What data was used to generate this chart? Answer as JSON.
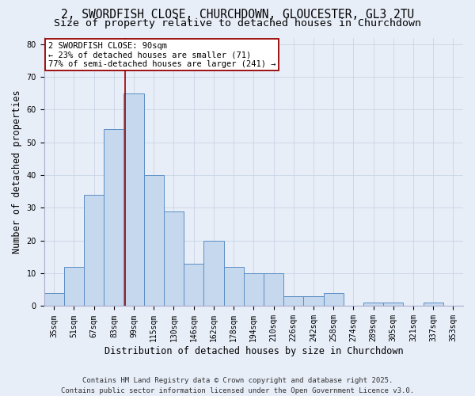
{
  "title_line1": "2, SWORDFISH CLOSE, CHURCHDOWN, GLOUCESTER, GL3 2TU",
  "title_line2": "Size of property relative to detached houses in Churchdown",
  "xlabel": "Distribution of detached houses by size in Churchdown",
  "ylabel": "Number of detached properties",
  "categories": [
    "35sqm",
    "51sqm",
    "67sqm",
    "83sqm",
    "99sqm",
    "115sqm",
    "130sqm",
    "146sqm",
    "162sqm",
    "178sqm",
    "194sqm",
    "210sqm",
    "226sqm",
    "242sqm",
    "258sqm",
    "274sqm",
    "289sqm",
    "305sqm",
    "321sqm",
    "337sqm",
    "353sqm"
  ],
  "values": [
    4,
    12,
    34,
    54,
    65,
    40,
    29,
    13,
    20,
    12,
    10,
    10,
    3,
    3,
    4,
    0,
    1,
    1,
    0,
    1,
    0
  ],
  "bar_color": "#c5d8ee",
  "bar_edge_color": "#5b8ec4",
  "vline_x_index": 3.55,
  "vline_color": "#990000",
  "annotation_text": "2 SWORDFISH CLOSE: 90sqm\n← 23% of detached houses are smaller (71)\n77% of semi-detached houses are larger (241) →",
  "annotation_box_facecolor": "#ffffff",
  "annotation_box_edgecolor": "#990000",
  "ylim": [
    0,
    82
  ],
  "yticks": [
    0,
    10,
    20,
    30,
    40,
    50,
    60,
    70,
    80
  ],
  "grid_color": "#c8d4e4",
  "background_color": "#e8eef8",
  "footer_line1": "Contains HM Land Registry data © Crown copyright and database right 2025.",
  "footer_line2": "Contains public sector information licensed under the Open Government Licence v3.0.",
  "title1_fontsize": 10.5,
  "title2_fontsize": 9.5,
  "axis_label_fontsize": 8.5,
  "tick_fontsize": 7,
  "annotation_fontsize": 7.5,
  "footer_fontsize": 6.5
}
